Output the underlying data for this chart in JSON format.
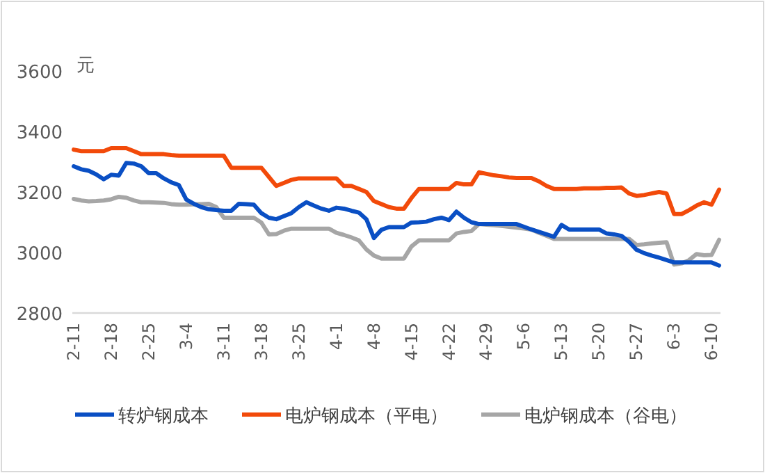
{
  "chart_data": {
    "type": "line",
    "ylabel": "元",
    "ylim": [
      2800,
      3600
    ],
    "yticks": [
      2800,
      3000,
      3200,
      3400,
      3600
    ],
    "legend": "bottom",
    "categories": [
      "2-11",
      null,
      null,
      null,
      null,
      "2-18",
      null,
      null,
      null,
      null,
      "2-25",
      null,
      null,
      null,
      null,
      "3-4",
      null,
      null,
      null,
      null,
      "3-11",
      null,
      null,
      null,
      null,
      "3-18",
      null,
      null,
      null,
      null,
      "3-25",
      null,
      null,
      null,
      null,
      "4-1",
      null,
      null,
      null,
      null,
      "4-8",
      null,
      null,
      null,
      null,
      "4-15",
      null,
      null,
      null,
      null,
      "4-22",
      null,
      null,
      null,
      null,
      "4-29",
      null,
      null,
      null,
      null,
      "5-6",
      null,
      null,
      null,
      null,
      "5-13",
      null,
      null,
      null,
      null,
      "5-20",
      null,
      null,
      null,
      null,
      "5-27",
      null,
      null,
      null,
      null,
      "6-3",
      null,
      null,
      null,
      null,
      "6-10",
      null
    ],
    "series": [
      {
        "name": "转炉钢成本",
        "color": "#0a4fc4",
        "values": [
          3285,
          3275,
          3270,
          3258,
          3242,
          3257,
          3254,
          3296,
          3294,
          3285,
          3262,
          3262,
          3245,
          3232,
          3223,
          3175,
          3161,
          3150,
          3143,
          3140,
          3138,
          3138,
          3161,
          3160,
          3158,
          3130,
          3115,
          3110,
          3120,
          3130,
          3150,
          3166,
          3155,
          3145,
          3138,
          3148,
          3145,
          3138,
          3132,
          3110,
          3048,
          3075,
          3084,
          3084,
          3084,
          3099,
          3100,
          3102,
          3110,
          3115,
          3107,
          3135,
          3115,
          3100,
          3094,
          3094,
          3094,
          3094,
          3094,
          3094,
          3085,
          3076,
          3068,
          3060,
          3052,
          3091,
          3076,
          3076,
          3076,
          3076,
          3076,
          3063,
          3060,
          3055,
          3035,
          3009,
          2998,
          2990,
          2983,
          2975,
          2967,
          2967,
          2967,
          2967,
          2967,
          2967,
          2957
        ]
      },
      {
        "name": "电炉钢成本（平电）",
        "color": "#f24a0a",
        "values": [
          3340,
          3335,
          3335,
          3335,
          3335,
          3345,
          3345,
          3345,
          3335,
          3325,
          3325,
          3325,
          3325,
          3322,
          3320,
          3320,
          3320,
          3320,
          3320,
          3320,
          3320,
          3280,
          3280,
          3280,
          3280,
          3280,
          3250,
          3220,
          3230,
          3240,
          3245,
          3245,
          3245,
          3245,
          3245,
          3245,
          3220,
          3220,
          3210,
          3200,
          3170,
          3160,
          3150,
          3145,
          3145,
          3180,
          3210,
          3210,
          3210,
          3210,
          3210,
          3230,
          3225,
          3225,
          3265,
          3260,
          3255,
          3252,
          3248,
          3246,
          3246,
          3246,
          3235,
          3220,
          3210,
          3210,
          3210,
          3210,
          3212,
          3212,
          3212,
          3214,
          3214,
          3215,
          3195,
          3187,
          3190,
          3195,
          3200,
          3195,
          3127,
          3127,
          3140,
          3155,
          3166,
          3158,
          3208
        ]
      },
      {
        "name": "电炉钢成本（谷电）",
        "color": "#a6a6a6",
        "values": [
          3177,
          3172,
          3169,
          3170,
          3172,
          3176,
          3184,
          3181,
          3172,
          3166,
          3166,
          3165,
          3164,
          3160,
          3158,
          3158,
          3159,
          3160,
          3161,
          3150,
          3115,
          3115,
          3115,
          3115,
          3115,
          3099,
          3060,
          3061,
          3072,
          3079,
          3079,
          3079,
          3079,
          3079,
          3079,
          3065,
          3058,
          3050,
          3040,
          3010,
          2990,
          2980,
          2980,
          2980,
          2980,
          3020,
          3040,
          3040,
          3040,
          3040,
          3040,
          3063,
          3068,
          3071,
          3094,
          3092,
          3090,
          3088,
          3085,
          3082,
          3079,
          3076,
          3065,
          3055,
          3045,
          3045,
          3045,
          3045,
          3045,
          3045,
          3045,
          3045,
          3045,
          3045,
          3045,
          3025,
          3027,
          3030,
          3032,
          3034,
          2960,
          2964,
          2975,
          2995,
          2991,
          2992,
          3042
        ]
      }
    ]
  }
}
